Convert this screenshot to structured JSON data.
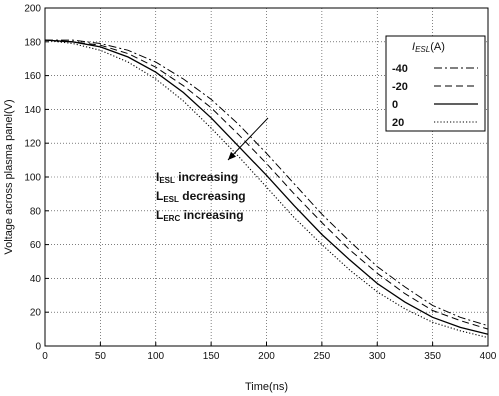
{
  "chart_data": {
    "type": "line",
    "xlabel": "Time(ns)",
    "ylabel": "Voltage across plasma panel(V)",
    "xlim": [
      0,
      400
    ],
    "ylim": [
      0,
      200
    ],
    "xticks": [
      0,
      50,
      100,
      150,
      200,
      250,
      300,
      350,
      400
    ],
    "yticks": [
      0,
      20,
      40,
      60,
      80,
      100,
      120,
      140,
      160,
      180,
      200
    ],
    "grid": true,
    "legend": {
      "placement": "top-right",
      "title_main": "I",
      "title_sub": "ESL",
      "title_unit": "(A)"
    },
    "annotation": {
      "lines": [
        {
          "main": "I",
          "sub": "ESL",
          "rest": " increasing"
        },
        {
          "main": "L",
          "sub": "ESL",
          "rest": " decreasing"
        },
        {
          "main": "L",
          "sub": "ERC",
          "rest": " increasing"
        }
      ]
    },
    "x": [
      0,
      25,
      50,
      75,
      100,
      125,
      150,
      175,
      200,
      225,
      250,
      275,
      300,
      325,
      350,
      375,
      400
    ],
    "series": [
      {
        "name": "-40",
        "style": "dashdot",
        "values": [
          181,
          181,
          179,
          175,
          168,
          158,
          146,
          131,
          114,
          96,
          78,
          62,
          47,
          35,
          24,
          17,
          12
        ]
      },
      {
        "name": "-20",
        "style": "dashed",
        "values": [
          181,
          180,
          178,
          173,
          165,
          154,
          141,
          125,
          108,
          90,
          73,
          57,
          43,
          31,
          21,
          15,
          10
        ]
      },
      {
        "name": "0",
        "style": "solid",
        "values": [
          181,
          180,
          177,
          171,
          162,
          150,
          135,
          118,
          101,
          83,
          66,
          51,
          37,
          26,
          17,
          11,
          7
        ]
      },
      {
        "name": "20",
        "style": "dotted",
        "values": [
          181,
          179,
          175,
          168,
          158,
          145,
          129,
          112,
          94,
          76,
          60,
          45,
          32,
          22,
          14,
          9,
          5
        ]
      }
    ]
  }
}
